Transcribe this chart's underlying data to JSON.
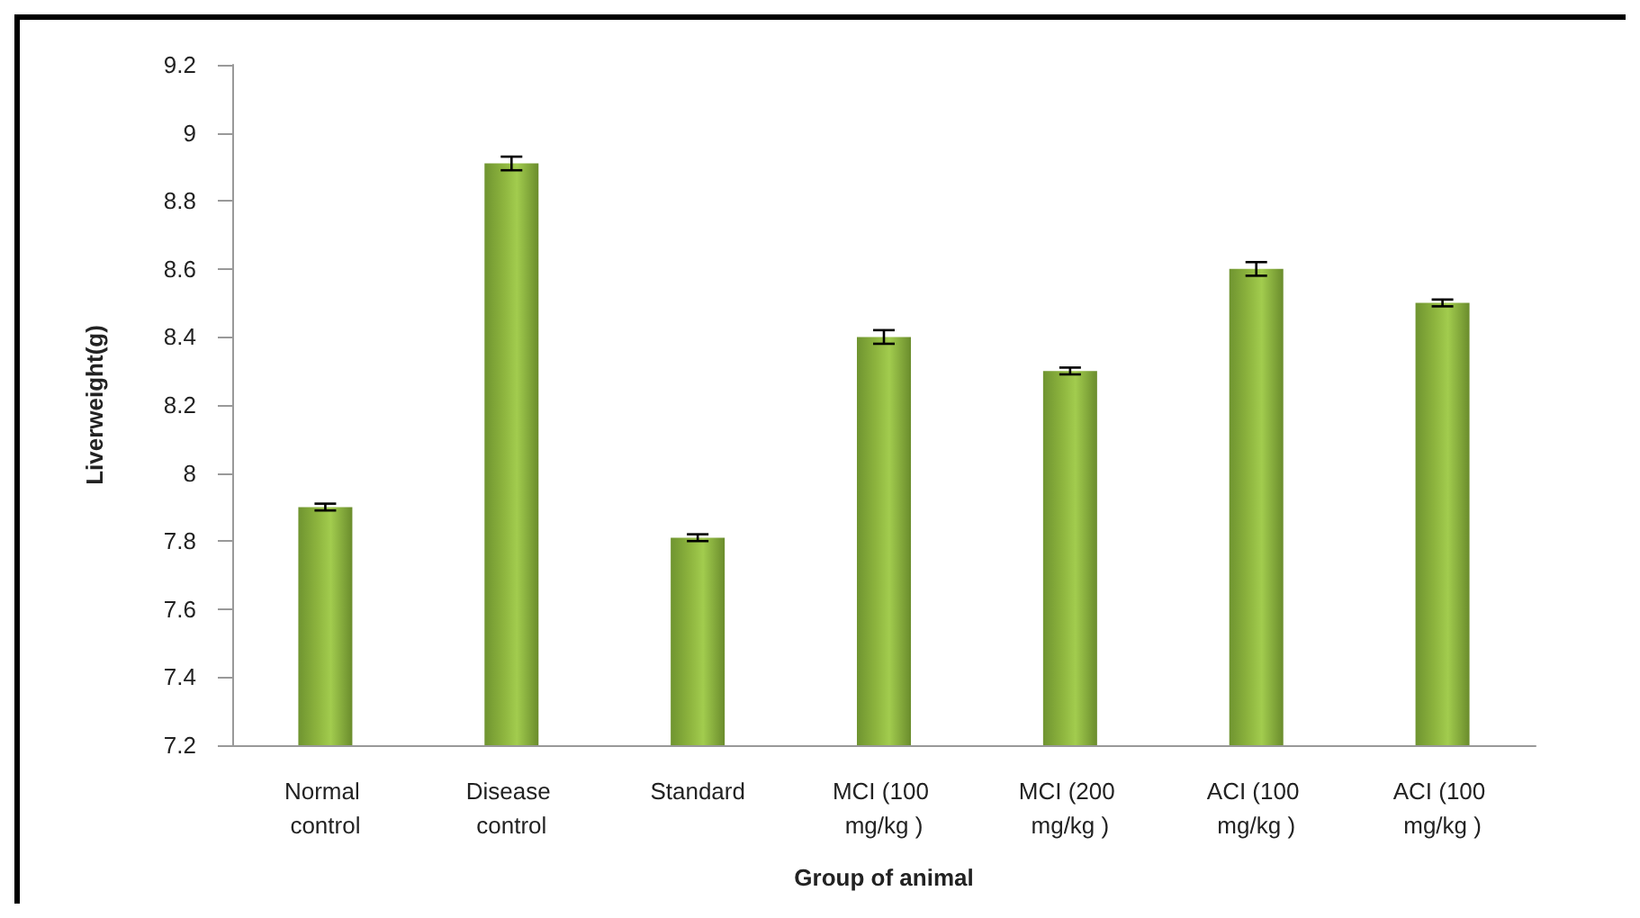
{
  "chart_data": {
    "type": "bar",
    "xlabel": "Group of animal",
    "ylabel": "Liverweight(g)",
    "categories": [
      "Normal control",
      "Disease control",
      "Standard",
      "MCI (100 mg/kg )",
      "MCI (200 mg/kg )",
      "ACI (100 mg/kg )",
      "ACI (100 mg/kg )"
    ],
    "values": [
      7.9,
      8.91,
      7.81,
      8.4,
      8.3,
      8.6,
      8.5
    ],
    "errors": [
      0.01,
      0.02,
      0.01,
      0.02,
      0.01,
      0.02,
      0.01
    ],
    "color": "#8db43e",
    "ylim": [
      7.2,
      9.2
    ],
    "yticks": [
      7.2,
      7.4,
      7.6,
      7.8,
      8,
      8.2,
      8.4,
      8.6,
      8.8,
      9,
      9.2
    ],
    "grid": false
  }
}
